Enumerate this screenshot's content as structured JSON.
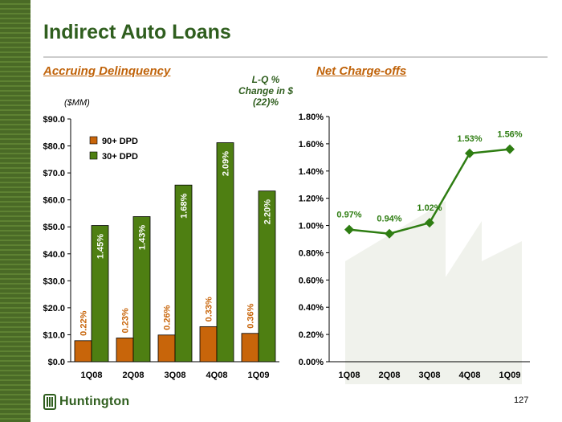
{
  "header": {
    "title": "Indirect Auto Loans",
    "section_left": "Accruing Delinquency",
    "section_right": "Net Charge-offs",
    "lq_note": [
      "L-Q %",
      "Change in $",
      "(22)%"
    ],
    "unit_label": "($MM)"
  },
  "footer": {
    "logo_text": "Huntington",
    "page_number": "127"
  },
  "colors": {
    "dpd90": "#c8650a",
    "dpd30": "#4e7f12",
    "line": "#2e7d12",
    "brand": "#2f5e1e",
    "accent": "#c0630a",
    "sidebar": "#4a6a26"
  },
  "chart_data": [
    {
      "type": "bar",
      "title": "Accruing Delinquency",
      "ylabel": "($MM)",
      "categories": [
        "1Q08",
        "2Q08",
        "3Q08",
        "4Q08",
        "1Q09"
      ],
      "ylim": [
        0,
        90
      ],
      "yticks": [
        "$0.0",
        "$10.0",
        "$20.0",
        "$30.0",
        "$40.0",
        "$50.0",
        "$60.0",
        "$70.0",
        "$80.0",
        "$90.0"
      ],
      "legend_position": "top-left",
      "series": [
        {
          "name": "90+ DPD",
          "values": [
            7.8,
            8.8,
            9.9,
            13.0,
            10.5
          ],
          "labels": [
            "0.22%",
            "0.23%",
            "0.26%",
            "0.33%",
            "0.36%"
          ]
        },
        {
          "name": "30+ DPD",
          "values": [
            50.5,
            53.8,
            65.5,
            81.2,
            63.3
          ],
          "labels": [
            "1.45%",
            "1.43%",
            "1.68%",
            "2.09%",
            "2.20%"
          ]
        }
      ]
    },
    {
      "type": "line",
      "title": "Net Charge-offs",
      "categories": [
        "1Q08",
        "2Q08",
        "3Q08",
        "4Q08",
        "1Q09"
      ],
      "ylim": [
        0,
        1.8
      ],
      "yticks": [
        "0.00%",
        "0.20%",
        "0.40%",
        "0.60%",
        "0.80%",
        "1.00%",
        "1.20%",
        "1.40%",
        "1.60%",
        "1.80%"
      ],
      "series": [
        {
          "values": [
            0.97,
            0.94,
            1.02,
            1.53,
            1.56
          ],
          "labels": [
            "0.97%",
            "0.94%",
            "1.02%",
            "1.53%",
            "1.56%"
          ]
        }
      ]
    }
  ]
}
